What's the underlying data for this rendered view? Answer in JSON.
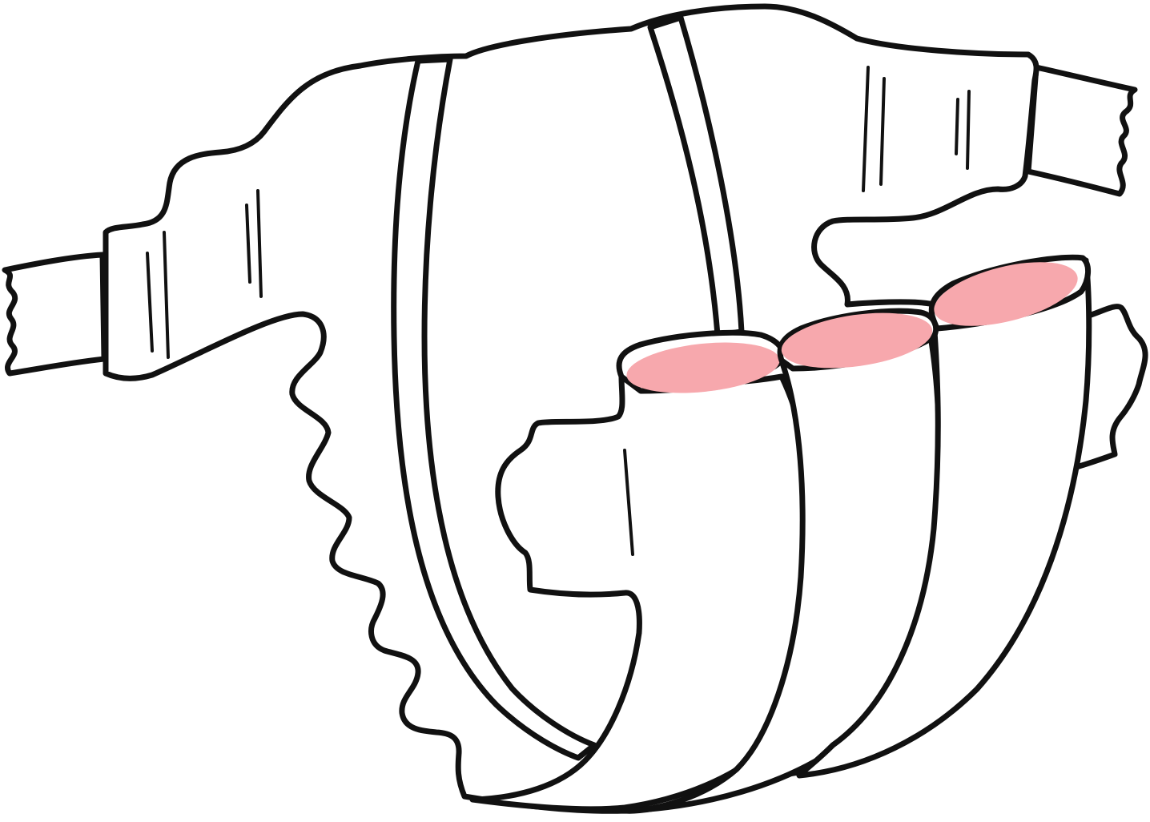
{
  "illustration": {
    "subject": "diaper-icon",
    "colors": {
      "outline": "#111111",
      "fill": "#ffffff",
      "leg_opening": "#f7a8ad",
      "background": "#ffffff"
    }
  }
}
